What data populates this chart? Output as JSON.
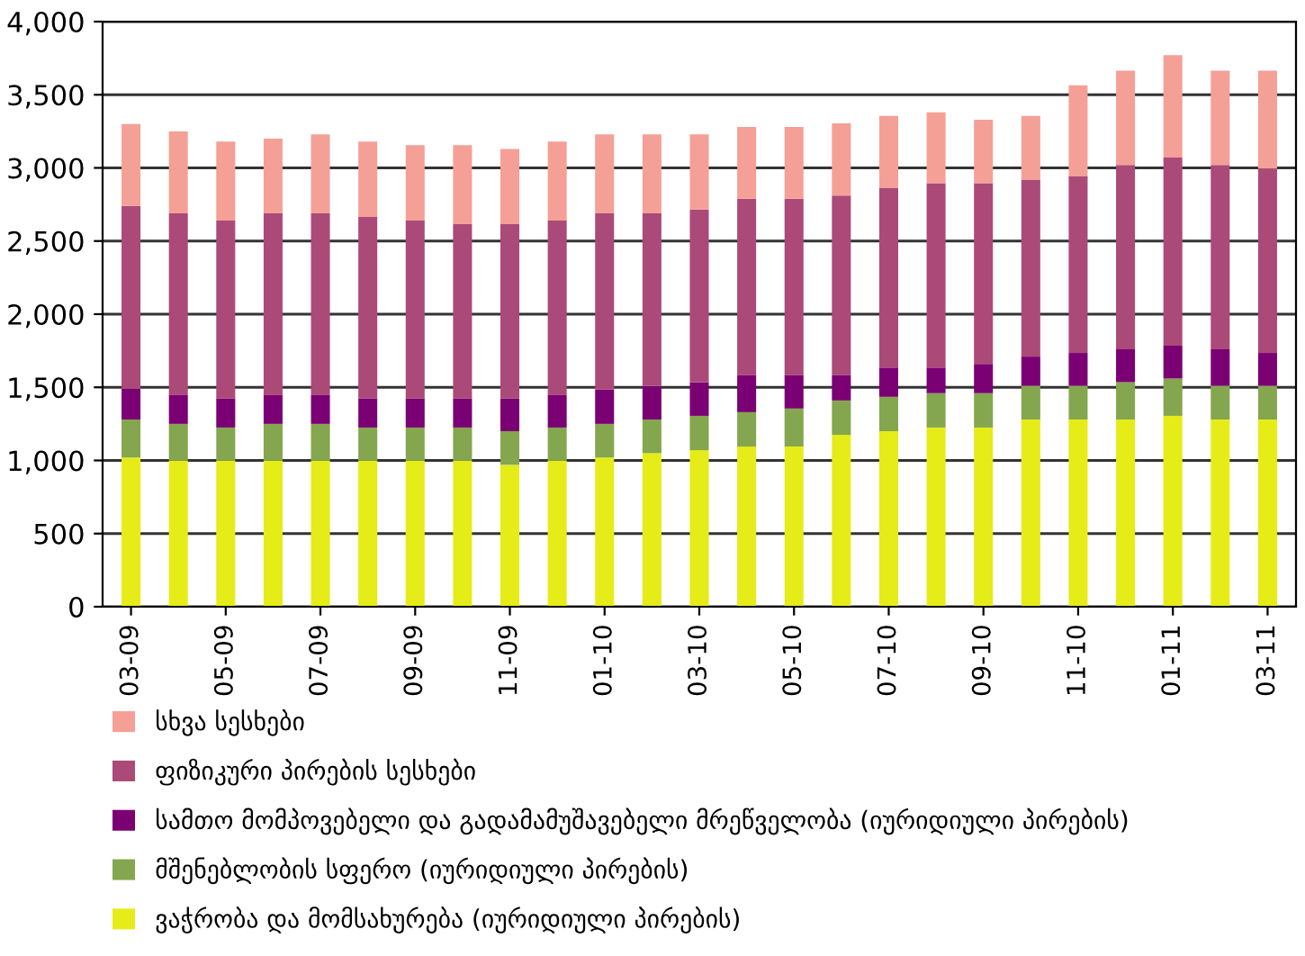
{
  "chart_data": {
    "type": "bar",
    "stacked": true,
    "categories": [
      "03-09",
      null,
      "05-09",
      null,
      "07-09",
      null,
      "09-09",
      null,
      "11-09",
      null,
      "01-10",
      null,
      "03-10",
      null,
      "05-10",
      null,
      "07-10",
      null,
      "09-10",
      null,
      "11-10",
      null,
      "01-11",
      null,
      "03-11"
    ],
    "series": [
      {
        "name": "ვაჭრობა და მომსახურება (იურიდიული პირების)",
        "color": "#e6ec17",
        "values": [
          1020,
          1000,
          1000,
          1000,
          1000,
          1000,
          1000,
          1000,
          970,
          1000,
          1020,
          1050,
          1070,
          1095,
          1095,
          1175,
          1200,
          1225,
          1225,
          1280,
          1280,
          1280,
          1305,
          1280,
          1280
        ]
      },
      {
        "name": "მშენებლობის სფერო (იურიდიული პირების)",
        "color": "#84a64e",
        "values": [
          260,
          250,
          225,
          250,
          250,
          225,
          225,
          225,
          230,
          225,
          230,
          230,
          235,
          235,
          260,
          235,
          235,
          235,
          235,
          230,
          230,
          255,
          255,
          230,
          230
        ]
      },
      {
        "name": "სამთო მომპოვებელი და გადამამუშავებელი მრეწველობა (იურიდიული პირების)",
        "color": "#7a0073",
        "values": [
          210,
          200,
          200,
          200,
          200,
          200,
          200,
          200,
          225,
          225,
          235,
          230,
          230,
          255,
          230,
          175,
          200,
          175,
          200,
          200,
          225,
          225,
          225,
          250,
          225
        ]
      },
      {
        "name": "ფიზიკური პირების სესხები",
        "color": "#ab4a78",
        "values": [
          1250,
          1240,
          1215,
          1240,
          1240,
          1240,
          1215,
          1190,
          1190,
          1190,
          1205,
          1180,
          1180,
          1205,
          1205,
          1225,
          1230,
          1260,
          1235,
          1210,
          1210,
          1260,
          1285,
          1260,
          1260
        ]
      },
      {
        "name": "სხვა სესხები",
        "color": "#f4a097",
        "values": [
          560,
          560,
          540,
          510,
          540,
          515,
          515,
          540,
          515,
          540,
          540,
          540,
          515,
          490,
          490,
          495,
          490,
          485,
          435,
          435,
          620,
          645,
          700,
          645,
          670
        ]
      }
    ],
    "ylim": [
      0,
      4000
    ],
    "yticks": [
      {
        "value": 0,
        "label": "0"
      },
      {
        "value": 500,
        "label": "500"
      },
      {
        "value": 1000,
        "label": "1,000"
      },
      {
        "value": 1500,
        "label": "1,500"
      },
      {
        "value": 2000,
        "label": "2,000"
      },
      {
        "value": 2500,
        "label": "2,500"
      },
      {
        "value": 3000,
        "label": "3,000"
      },
      {
        "value": 3500,
        "label": "3,500"
      },
      {
        "value": 4000,
        "label": "4,000"
      }
    ],
    "grid": "y",
    "legend": "bottom"
  }
}
